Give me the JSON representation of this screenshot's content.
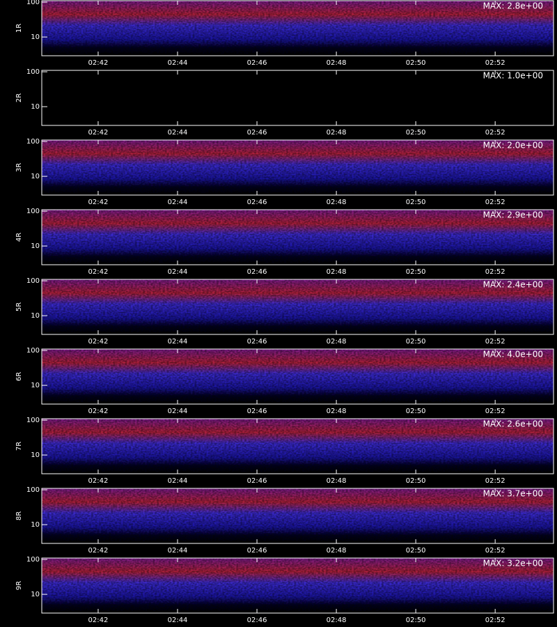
{
  "chart_data": [
    {
      "type": "spectrogram",
      "ylabel": "1R",
      "annotation": "MAX: 2.8e+00",
      "log_y": true,
      "xlim": [
        160.58,
        173.47
      ],
      "ylim": [
        2.9,
        110
      ],
      "yticks": [
        10,
        100
      ],
      "xticks": [
        {
          "value": 162,
          "label": "02:42"
        },
        {
          "value": 164,
          "label": "02:44"
        },
        {
          "value": 166,
          "label": "02:46"
        },
        {
          "value": 168,
          "label": "02:48"
        },
        {
          "value": 170,
          "label": "02:50"
        },
        {
          "value": 172,
          "label": "02:52"
        }
      ]
    },
    {
      "type": "spectrogram",
      "ylabel": "2R",
      "annotation": "MAX: 1.0e+00",
      "log_y": true,
      "xlim": [
        160.58,
        173.47
      ],
      "ylim": [
        2.9,
        110
      ],
      "yticks": [
        10,
        100
      ],
      "xticks": [
        {
          "value": 162,
          "label": "02:42"
        },
        {
          "value": 164,
          "label": "02:44"
        },
        {
          "value": 166,
          "label": "02:46"
        },
        {
          "value": 168,
          "label": "02:48"
        },
        {
          "value": 170,
          "label": "02:50"
        },
        {
          "value": 172,
          "label": "02:52"
        }
      ]
    },
    {
      "type": "spectrogram",
      "ylabel": "3R",
      "annotation": "MAX: 2.0e+00",
      "log_y": true,
      "xlim": [
        160.58,
        173.47
      ],
      "ylim": [
        2.9,
        110
      ],
      "yticks": [
        10,
        100
      ],
      "xticks": [
        {
          "value": 162,
          "label": "02:42"
        },
        {
          "value": 164,
          "label": "02:44"
        },
        {
          "value": 166,
          "label": "02:46"
        },
        {
          "value": 168,
          "label": "02:48"
        },
        {
          "value": 170,
          "label": "02:50"
        },
        {
          "value": 172,
          "label": "02:52"
        }
      ]
    },
    {
      "type": "spectrogram",
      "ylabel": "4R",
      "annotation": "MAX: 2.9e+00",
      "log_y": true,
      "xlim": [
        160.58,
        173.47
      ],
      "ylim": [
        2.9,
        110
      ],
      "yticks": [
        10,
        100
      ],
      "xticks": [
        {
          "value": 162,
          "label": "02:42"
        },
        {
          "value": 164,
          "label": "02:44"
        },
        {
          "value": 166,
          "label": "02:46"
        },
        {
          "value": 168,
          "label": "02:48"
        },
        {
          "value": 170,
          "label": "02:50"
        },
        {
          "value": 172,
          "label": "02:52"
        }
      ]
    },
    {
      "type": "spectrogram",
      "ylabel": "5R",
      "annotation": "MAX: 2.4e+00",
      "log_y": true,
      "xlim": [
        160.58,
        173.47
      ],
      "ylim": [
        2.9,
        110
      ],
      "yticks": [
        10,
        100
      ],
      "xticks": [
        {
          "value": 162,
          "label": "02:42"
        },
        {
          "value": 164,
          "label": "02:44"
        },
        {
          "value": 166,
          "label": "02:46"
        },
        {
          "value": 168,
          "label": "02:48"
        },
        {
          "value": 170,
          "label": "02:50"
        },
        {
          "value": 172,
          "label": "02:52"
        }
      ]
    },
    {
      "type": "spectrogram",
      "ylabel": "6R",
      "annotation": "MAX: 4.0e+00",
      "log_y": true,
      "xlim": [
        160.58,
        173.47
      ],
      "ylim": [
        2.9,
        110
      ],
      "yticks": [
        10,
        100
      ],
      "xticks": [
        {
          "value": 162,
          "label": "02:42"
        },
        {
          "value": 164,
          "label": "02:44"
        },
        {
          "value": 166,
          "label": "02:46"
        },
        {
          "value": 168,
          "label": "02:48"
        },
        {
          "value": 170,
          "label": "02:50"
        },
        {
          "value": 172,
          "label": "02:52"
        }
      ]
    },
    {
      "type": "spectrogram",
      "ylabel": "7R",
      "annotation": "MAX: 2.6e+00",
      "log_y": true,
      "xlim": [
        160.58,
        173.47
      ],
      "ylim": [
        2.9,
        110
      ],
      "yticks": [
        10,
        100
      ],
      "xticks": [
        {
          "value": 162,
          "label": "02:42"
        },
        {
          "value": 164,
          "label": "02:44"
        },
        {
          "value": 166,
          "label": "02:46"
        },
        {
          "value": 168,
          "label": "02:48"
        },
        {
          "value": 170,
          "label": "02:50"
        },
        {
          "value": 172,
          "label": "02:52"
        }
      ]
    },
    {
      "type": "spectrogram",
      "ylabel": "8R",
      "annotation": "MAX: 3.7e+00",
      "log_y": true,
      "xlim": [
        160.58,
        173.47
      ],
      "ylim": [
        2.9,
        110
      ],
      "yticks": [
        10,
        100
      ],
      "xticks": [
        {
          "value": 162,
          "label": "02:42"
        },
        {
          "value": 164,
          "label": "02:44"
        },
        {
          "value": 166,
          "label": "02:46"
        },
        {
          "value": 168,
          "label": "02:48"
        },
        {
          "value": 170,
          "label": "02:50"
        },
        {
          "value": 172,
          "label": "02:52"
        }
      ]
    },
    {
      "type": "spectrogram",
      "ylabel": "9R",
      "annotation": "MAX: 3.2e+00",
      "log_y": true,
      "xlim": [
        160.58,
        173.47
      ],
      "ylim": [
        2.9,
        110
      ],
      "yticks": [
        10,
        100
      ],
      "xticks": [
        {
          "value": 162,
          "label": "02:42"
        },
        {
          "value": 164,
          "label": "02:44"
        },
        {
          "value": 166,
          "label": "02:46"
        },
        {
          "value": 168,
          "label": "02:48"
        },
        {
          "value": 170,
          "label": "02:50"
        },
        {
          "value": 172,
          "label": "02:52"
        }
      ]
    }
  ]
}
